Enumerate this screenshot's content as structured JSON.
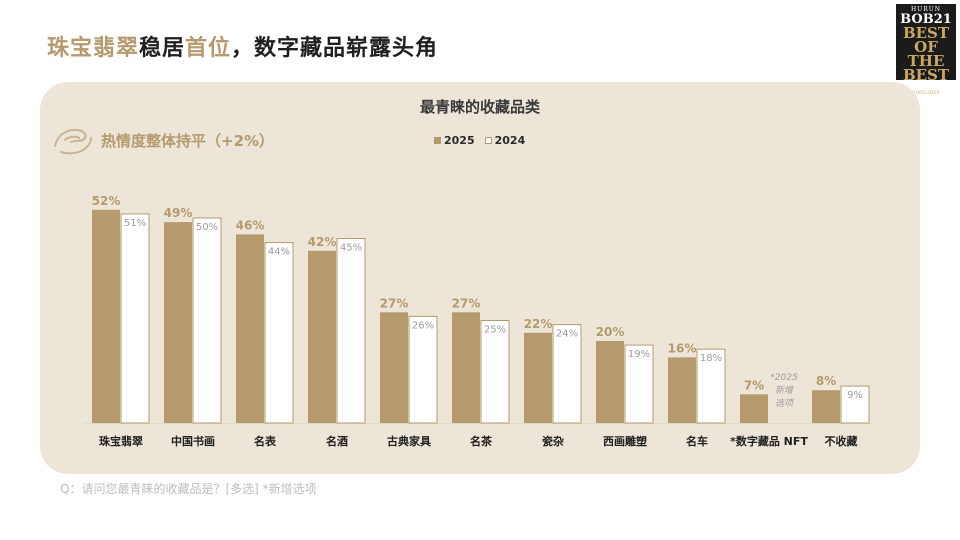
{
  "headline": {
    "part1": "珠宝翡翠",
    "part2": "稳居",
    "part3": "首位",
    "part4": "，数字藏品崭露头角"
  },
  "logo": {
    "l1": "HURUN",
    "l2": "BOB21",
    "l3": "BEST OF THE BEST",
    "l4": "胡润至尚优品",
    "l5": "2005-2025"
  },
  "subtitle": "热情度整体持平（+2%）",
  "footnote": "Q：请问您最青睐的收藏品是？[多选] *新增选项",
  "colors": {
    "accent": "#b59a6e",
    "panel": "#ede5d8"
  },
  "chart_data": {
    "type": "bar",
    "title": "最青睐的收藏品类",
    "categories": [
      "珠宝翡翠",
      "中国书画",
      "名表",
      "名酒",
      "古典家具",
      "名茶",
      "瓷杂",
      "西画雕塑",
      "名车",
      "*数字藏品 NFT",
      "不收藏"
    ],
    "series": [
      {
        "name": "2025",
        "values": [
          52,
          49,
          46,
          42,
          27,
          27,
          22,
          20,
          16,
          7,
          8
        ]
      },
      {
        "name": "2024",
        "values": [
          51,
          50,
          44,
          45,
          26,
          25,
          24,
          19,
          18,
          null,
          9
        ]
      }
    ],
    "annotations": [
      {
        "category": "*数字藏品 NFT",
        "series": "2024",
        "text": [
          "*2025",
          "新增",
          "选项"
        ]
      }
    ],
    "value_suffix": "%",
    "legend_position": "top",
    "grid": false
  }
}
